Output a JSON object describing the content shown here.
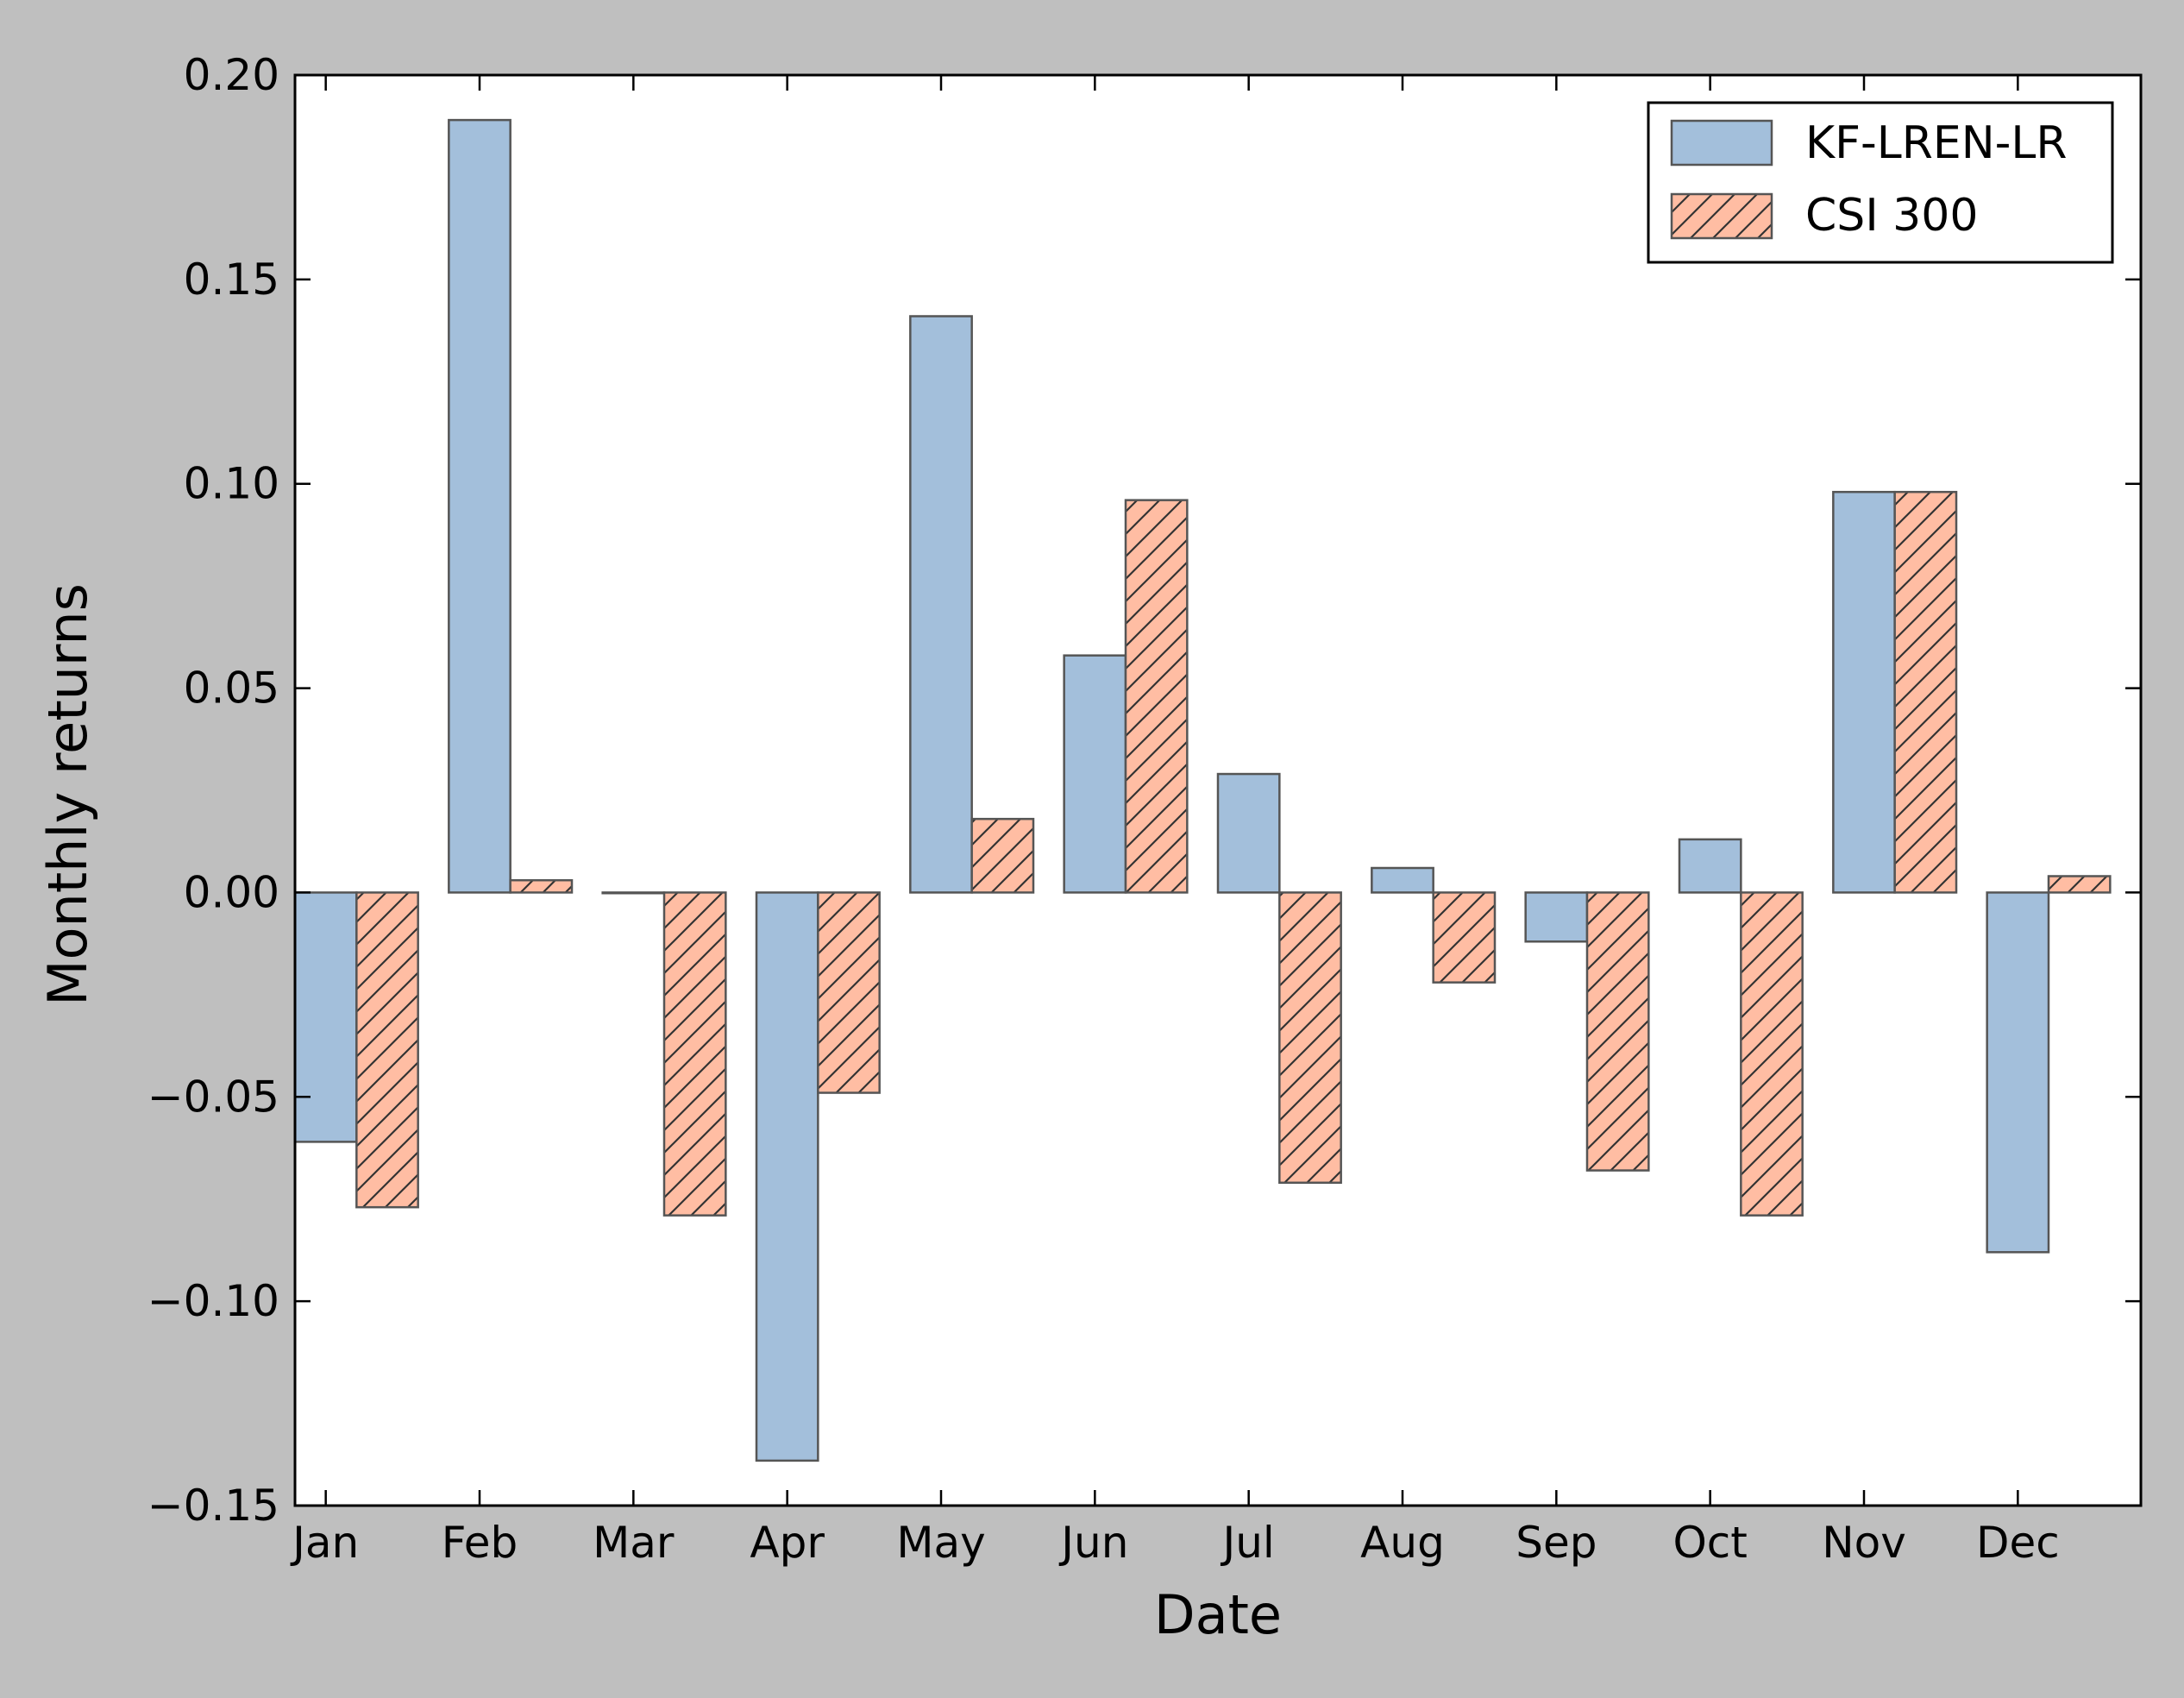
{
  "chart_data": {
    "type": "bar",
    "title": "",
    "xlabel": "Date",
    "ylabel": "Monthly returns",
    "ylim": [
      -0.15,
      0.2
    ],
    "yticks": [
      "0.20",
      "0.15",
      "0.10",
      "0.05",
      "0.00",
      "−0.05",
      "−0.10",
      "−0.15"
    ],
    "ytick_values": [
      0.2,
      0.15,
      0.1,
      0.05,
      0.0,
      -0.05,
      -0.1,
      -0.15
    ],
    "categories": [
      "Jan",
      "Feb",
      "Mar",
      "Apr",
      "May",
      "Jun",
      "Jul",
      "Aug",
      "Sep",
      "Oct",
      "Nov",
      "Dec"
    ],
    "series": [
      {
        "name": "KF-LREN-LR",
        "color": "#a3bfdb",
        "pattern": "solid",
        "values": [
          -0.061,
          0.189,
          0.0,
          -0.139,
          0.141,
          0.058,
          0.029,
          0.006,
          -0.012,
          0.013,
          0.098,
          -0.088
        ]
      },
      {
        "name": "CSI 300",
        "color": "#ffbda3",
        "pattern": "hatch",
        "values": [
          -0.077,
          0.003,
          -0.079,
          -0.049,
          0.018,
          0.096,
          -0.071,
          -0.022,
          -0.068,
          -0.079,
          0.098,
          0.004
        ]
      }
    ],
    "legend_position": "top-right",
    "grid": false
  },
  "colors": {
    "figure_background": "#bfbfbf",
    "plot_background": "#ffffff",
    "edge": "#555555",
    "hatch": "#333333"
  }
}
